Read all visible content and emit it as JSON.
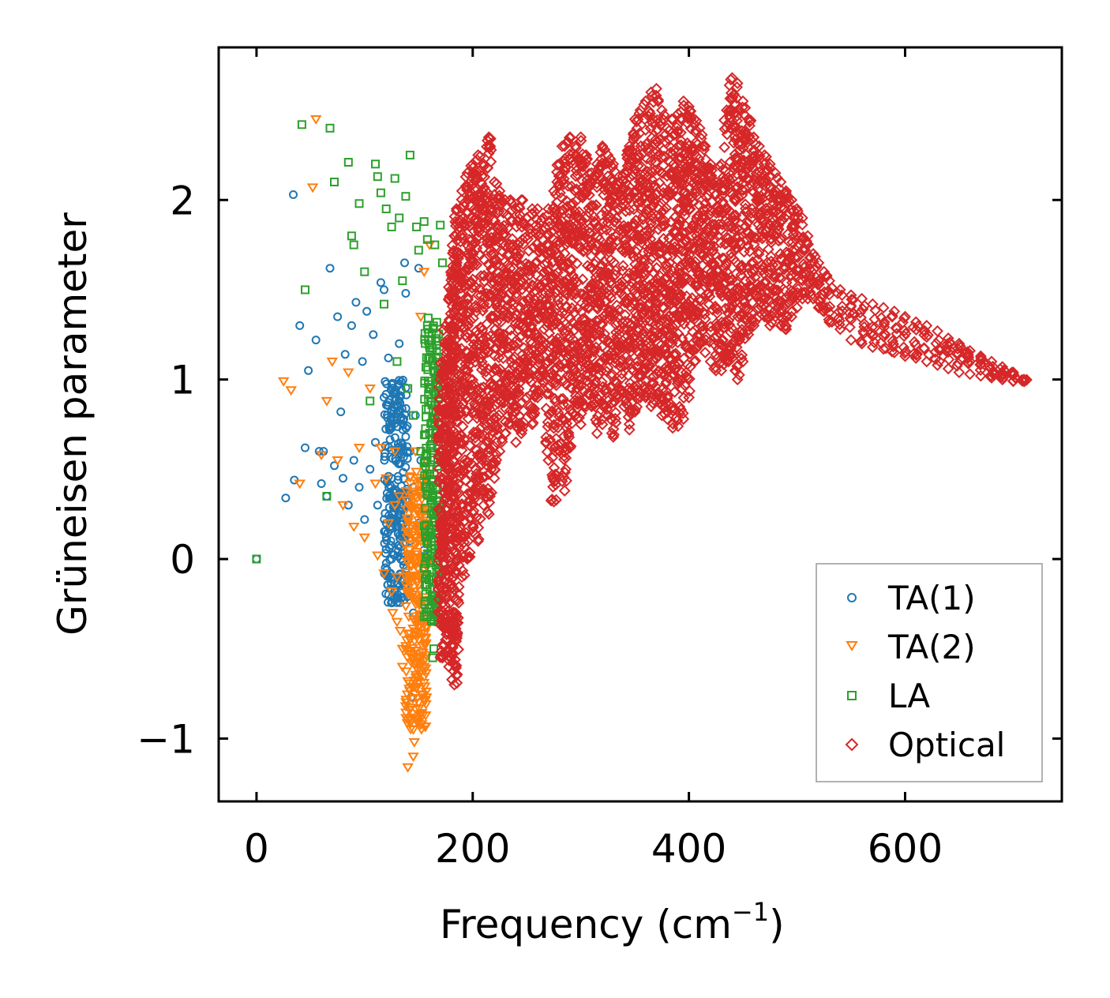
{
  "chart_data": {
    "type": "scatter",
    "xlabel": "Frequency (cm",
    "xlabel_superscript": "−1",
    "xlabel_close": ")",
    "ylabel": "Grüneisen parameter",
    "xlim": [
      -35,
      745
    ],
    "ylim": [
      -1.35,
      2.85
    ],
    "x_ticks": [
      0,
      200,
      400,
      600
    ],
    "x_tick_labels": [
      "0",
      "200",
      "400",
      "600"
    ],
    "y_ticks": [
      -1,
      0,
      1,
      2
    ],
    "y_tick_labels": [
      "−1",
      "0",
      "1",
      "2"
    ],
    "legend": {
      "position": "lower-right",
      "entries": [
        "TA(1)",
        "TA(2)",
        "LA",
        "Optical"
      ]
    },
    "series": [
      {
        "name": "TA(1)",
        "marker": "circle",
        "color": "#1f77b4",
        "x": [
          0,
          34,
          27,
          35,
          40,
          45,
          48,
          55,
          58,
          60,
          62,
          65,
          68,
          72,
          75,
          78,
          80,
          82,
          85,
          88,
          90,
          92,
          95,
          98,
          100,
          102,
          105,
          108,
          110,
          112,
          115,
          118,
          120,
          122,
          125,
          128,
          130,
          132,
          135,
          137,
          140,
          142,
          145,
          147,
          150,
          152,
          155,
          118,
          120,
          125,
          130,
          135,
          140,
          142,
          138,
          145,
          150,
          143
        ],
        "y": [
          0,
          2.03,
          0.34,
          0.44,
          1.3,
          0.62,
          1.05,
          1.22,
          0.6,
          0.42,
          0.6,
          0.35,
          1.62,
          0.52,
          1.35,
          0.82,
          0.45,
          1.14,
          0.3,
          1.3,
          0.55,
          1.43,
          0.4,
          1.1,
          0.22,
          1.38,
          0.5,
          1.25,
          0.65,
          0.3,
          1.54,
          0.9,
          0.12,
          1.12,
          0.45,
          0.88,
          0.18,
          1.2,
          0.35,
          1.65,
          0.6,
          0.1,
          0.4,
          0.8,
          0.2,
          0.55,
          0.05,
          1.5,
          0.2,
          0.0,
          -0.22,
          0.35,
          -0.1,
          0.6,
          1.48,
          -0.3,
          1.62,
          -0.77
        ]
      },
      {
        "name": "TA(2)",
        "marker": "triangle-down",
        "color": "#ff7f0e",
        "x": [
          25,
          32,
          40,
          52,
          55,
          60,
          65,
          70,
          75,
          80,
          85,
          90,
          95,
          100,
          105,
          110,
          112,
          115,
          118,
          120,
          122,
          125,
          128,
          130,
          132,
          135,
          137,
          140,
          142,
          145,
          147,
          150,
          152,
          155,
          157,
          160,
          145,
          140,
          143,
          148,
          150,
          138,
          135,
          130,
          128,
          147,
          152,
          155,
          158,
          133,
          126,
          146
        ],
        "y": [
          0.99,
          0.94,
          0.42,
          2.07,
          2.45,
          0.58,
          0.88,
          1.1,
          0.55,
          0.3,
          1.04,
          0.18,
          0.62,
          0.12,
          0.95,
          0.42,
          0.02,
          0.62,
          -0.08,
          0.45,
          0.2,
          -0.18,
          0.6,
          -0.35,
          0.35,
          -0.5,
          0.08,
          -0.68,
          0.3,
          -0.95,
          -0.2,
          -0.8,
          0.1,
          -0.6,
          0.55,
          1.75,
          -1.1,
          -1.16,
          -0.9,
          -0.72,
          -0.45,
          -0.82,
          -0.6,
          -0.1,
          0.3,
          0.6,
          1.35,
          1.6,
          0.2,
          -0.4,
          -0.3,
          -1.02
        ]
      },
      {
        "name": "LA",
        "marker": "square",
        "color": "#2ca02c",
        "x": [
          0,
          42,
          45,
          65,
          68,
          72,
          85,
          88,
          90,
          95,
          100,
          105,
          110,
          112,
          115,
          118,
          120,
          125,
          128,
          130,
          132,
          135,
          138,
          140,
          142,
          145,
          148,
          150,
          152,
          155,
          158,
          160,
          162,
          165,
          167,
          170,
          160,
          162,
          165,
          168,
          163,
          158,
          165,
          166,
          168,
          170,
          172,
          164,
          170
        ],
        "y": [
          0,
          2.42,
          1.5,
          0.35,
          2.4,
          2.1,
          2.21,
          1.8,
          1.75,
          1.98,
          1.6,
          0.88,
          2.2,
          2.13,
          2.04,
          1.42,
          1.95,
          1.85,
          2.12,
          1.1,
          1.9,
          1.55,
          2.02,
          0.95,
          2.25,
          0.8,
          1.85,
          1.72,
          0.6,
          1.88,
          1.3,
          0.5,
          1.22,
          1.05,
          0.7,
          0.3,
          0.15,
          -0.1,
          -0.25,
          -0.35,
          -0.55,
          1.78,
          1.75,
          0.4,
          -0.1,
          1.86,
          1.65,
          -0.5,
          0.9
        ]
      },
      {
        "name": "Optical",
        "marker": "diamond",
        "color": "#d62728",
        "x": [
          170,
          172,
          175,
          178,
          180,
          183,
          185,
          190,
          195,
          200,
          205,
          210,
          215,
          220,
          225,
          230,
          235,
          240,
          245,
          250,
          255,
          260,
          265,
          270,
          275,
          280,
          285,
          290,
          295,
          300,
          305,
          310,
          315,
          320,
          325,
          330,
          335,
          340,
          345,
          350,
          355,
          360,
          365,
          370,
          375,
          380,
          385,
          390,
          395,
          400,
          405,
          410,
          415,
          420,
          425,
          430,
          435,
          440,
          445,
          450,
          455,
          460,
          465,
          470,
          475,
          480,
          485,
          490,
          495,
          500,
          505,
          510,
          515,
          520,
          525,
          530,
          540,
          550,
          560,
          570,
          580,
          590,
          600,
          610,
          620,
          630,
          640,
          650,
          660,
          670,
          680,
          690,
          700,
          710
        ],
        "y_high": [
          1.0,
          1.1,
          1.3,
          1.45,
          1.6,
          1.8,
          1.95,
          2.05,
          2.15,
          2.2,
          2.25,
          2.2,
          2.35,
          2.1,
          2.05,
          2.0,
          2.0,
          1.95,
          2.0,
          1.9,
          1.95,
          1.95,
          1.9,
          1.95,
          2.05,
          2.2,
          2.3,
          2.35,
          2.3,
          2.35,
          2.25,
          2.15,
          2.2,
          2.3,
          2.25,
          2.2,
          2.1,
          2.15,
          2.3,
          2.45,
          2.5,
          2.55,
          2.6,
          2.62,
          2.5,
          2.4,
          2.45,
          2.48,
          2.55,
          2.52,
          2.45,
          2.4,
          2.3,
          2.2,
          2.1,
          2.2,
          2.5,
          2.68,
          2.65,
          2.55,
          2.45,
          2.35,
          2.3,
          2.25,
          2.2,
          2.15,
          2.1,
          2.05,
          2.0,
          1.95,
          1.9,
          1.8,
          1.7,
          1.65,
          1.6,
          1.55,
          1.5,
          1.47,
          1.45,
          1.42,
          1.4,
          1.38,
          1.35,
          1.32,
          1.3,
          1.27,
          1.23,
          1.2,
          1.16,
          1.13,
          1.1,
          1.07,
          1.04,
          1.0
        ],
        "y_low": [
          -0.3,
          -0.55,
          -0.45,
          -0.6,
          -0.55,
          -0.7,
          -0.65,
          -0.1,
          0.0,
          0.15,
          0.1,
          0.3,
          0.25,
          0.45,
          0.6,
          0.7,
          0.75,
          0.65,
          0.7,
          0.9,
          0.75,
          0.9,
          0.95,
          0.55,
          0.32,
          0.6,
          0.38,
          0.62,
          0.8,
          0.75,
          0.85,
          0.85,
          0.7,
          0.75,
          0.8,
          0.68,
          0.9,
          0.85,
          0.72,
          0.82,
          0.9,
          0.9,
          0.85,
          0.9,
          0.8,
          0.78,
          0.73,
          0.74,
          0.78,
          0.9,
          1.1,
          1.2,
          1.15,
          1.1,
          1.05,
          1.05,
          1.1,
          1.12,
          1.0,
          1.1,
          1.25,
          1.3,
          1.35,
          1.35,
          1.3,
          1.35,
          1.3,
          1.28,
          1.35,
          1.4,
          1.45,
          1.45,
          1.45,
          1.4,
          1.38,
          1.32,
          1.28,
          1.22,
          1.2,
          1.18,
          1.17,
          1.15,
          1.13,
          1.12,
          1.1,
          1.08,
          1.06,
          1.04,
          1.03,
          1.02,
          1.01,
          1.0,
          0.99,
          0.99
        ]
      }
    ]
  }
}
